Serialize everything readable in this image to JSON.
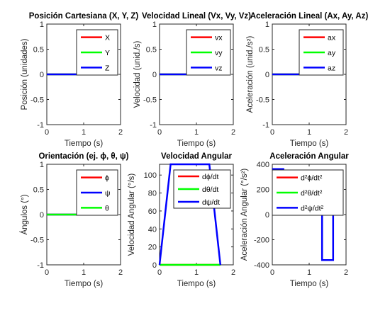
{
  "figure": {
    "background": "#ffffff"
  },
  "chart_data": [
    {
      "type": "line",
      "title": "Posición Cartesiana (X, Y, Z)",
      "xlabel": "Tiempo (s)",
      "ylabel": "Posición (unidades)",
      "xlim": [
        0,
        2
      ],
      "ylim": [
        -1,
        1
      ],
      "xticks": [
        "0",
        "1",
        "2"
      ],
      "yticks": [
        "-1",
        "-0.5",
        "0",
        "0.5",
        "1"
      ],
      "legend_position": "top-right",
      "grid": false,
      "series": [
        {
          "name": "X",
          "color": "#ff0000",
          "x": [
            0,
            1.65
          ],
          "y": [
            0,
            0
          ]
        },
        {
          "name": "Y",
          "color": "#00ff00",
          "x": [
            0,
            1.65
          ],
          "y": [
            0,
            0
          ]
        },
        {
          "name": "Z",
          "color": "#0000ff",
          "x": [
            0,
            1.65
          ],
          "y": [
            0,
            0
          ]
        }
      ]
    },
    {
      "type": "line",
      "title": "Velocidad Lineal (Vx, Vy, Vz)",
      "xlabel": "Tiempo (s)",
      "ylabel": "Velocidad (unid./s)",
      "xlim": [
        0,
        2
      ],
      "ylim": [
        -1,
        1
      ],
      "xticks": [
        "0",
        "1",
        "2"
      ],
      "yticks": [
        "-1",
        "-0.5",
        "0",
        "0.5",
        "1"
      ],
      "legend_position": "top-right",
      "grid": false,
      "series": [
        {
          "name": "vx",
          "color": "#ff0000",
          "x": [
            0,
            1.65
          ],
          "y": [
            0,
            0
          ]
        },
        {
          "name": "vy",
          "color": "#00ff00",
          "x": [
            0,
            1.65
          ],
          "y": [
            0,
            0
          ]
        },
        {
          "name": "vz",
          "color": "#0000ff",
          "x": [
            0,
            1.65
          ],
          "y": [
            0,
            0
          ]
        }
      ]
    },
    {
      "type": "line",
      "title": "Aceleración Lineal (Ax, Ay, Az)",
      "xlabel": "Tiempo (s)",
      "ylabel": "Aceleración (unid./s²)",
      "xlim": [
        0,
        2
      ],
      "ylim": [
        -1,
        1
      ],
      "xticks": [
        "0",
        "1",
        "2"
      ],
      "yticks": [
        "-1",
        "-0.5",
        "0",
        "0.5",
        "1"
      ],
      "legend_position": "top-right",
      "grid": false,
      "series": [
        {
          "name": "ax",
          "color": "#ff0000",
          "x": [
            0,
            1.65
          ],
          "y": [
            0,
            0
          ]
        },
        {
          "name": "ay",
          "color": "#00ff00",
          "x": [
            0,
            1.65
          ],
          "y": [
            0,
            0
          ]
        },
        {
          "name": "az",
          "color": "#0000ff",
          "x": [
            0,
            1.65
          ],
          "y": [
            0,
            0
          ]
        }
      ]
    },
    {
      "type": "line",
      "title": "Orientación (ej. ϕ, θ, ψ)",
      "xlabel": "Tiempo (s)",
      "ylabel": "Ángulos (°)",
      "xlim": [
        0,
        2
      ],
      "ylim": [
        -1,
        1
      ],
      "xticks": [
        "0",
        "1",
        "2"
      ],
      "yticks": [
        "-1",
        "-0.5",
        "0",
        "0.5",
        "1"
      ],
      "legend_position": "top-right",
      "grid": false,
      "series": [
        {
          "name": "ϕ",
          "color": "#ff0000",
          "x": [
            0,
            1.65
          ],
          "y": [
            0,
            0
          ]
        },
        {
          "name": "ψ",
          "color": "#0000ff",
          "x": [
            0,
            1.65
          ],
          "y": [
            0,
            0
          ]
        },
        {
          "name": "θ",
          "color": "#00ff00",
          "x": [
            0,
            1.65
          ],
          "y": [
            0,
            0
          ]
        }
      ]
    },
    {
      "type": "line",
      "title": "Velocidad Angular",
      "xlabel": "Tiempo (s)",
      "ylabel": "Velocidad Angular (°/s)",
      "xlim": [
        0,
        2
      ],
      "ylim": [
        0,
        112
      ],
      "xticks": [
        "0",
        "1",
        "2"
      ],
      "yticks": [
        "0",
        "20",
        "40",
        "60",
        "80",
        "100"
      ],
      "legend_position": "top-right",
      "grid": false,
      "series": [
        {
          "name": "dϕ/dt",
          "color": "#ff0000",
          "x": [
            0,
            1.65
          ],
          "y": [
            0,
            0
          ]
        },
        {
          "name": "dθ/dt",
          "color": "#00ff00",
          "x": [
            0,
            1.65
          ],
          "y": [
            0,
            0
          ]
        },
        {
          "name": "dψ/dt",
          "color": "#0000ff",
          "x": [
            0,
            0.3,
            1.35,
            1.65
          ],
          "y": [
            0,
            112,
            112,
            0
          ]
        }
      ]
    },
    {
      "type": "line",
      "title": "Aceleración Angular",
      "xlabel": "Tiempo (s)",
      "ylabel": "Aceleración Angular (°/s²)",
      "xlim": [
        0,
        2
      ],
      "ylim": [
        -400,
        400
      ],
      "xticks": [
        "0",
        "1",
        "2"
      ],
      "yticks": [
        "-400",
        "-200",
        "0",
        "200",
        "400"
      ],
      "legend_position": "top-right",
      "grid": false,
      "series": [
        {
          "name": "d²ϕ/dt²",
          "color": "#ff0000",
          "x": [
            0,
            1.65
          ],
          "y": [
            0,
            0
          ]
        },
        {
          "name": "d²θ/dt²",
          "color": "#00ff00",
          "x": [
            0,
            1.65
          ],
          "y": [
            0,
            0
          ]
        },
        {
          "name": "d²ψ/dt²",
          "color": "#0000ff",
          "x": [
            0,
            0.3,
            0.3,
            1.35,
            1.35,
            1.65,
            1.65
          ],
          "y": [
            362,
            362,
            0,
            0,
            -362,
            -362,
            0
          ]
        }
      ]
    }
  ]
}
